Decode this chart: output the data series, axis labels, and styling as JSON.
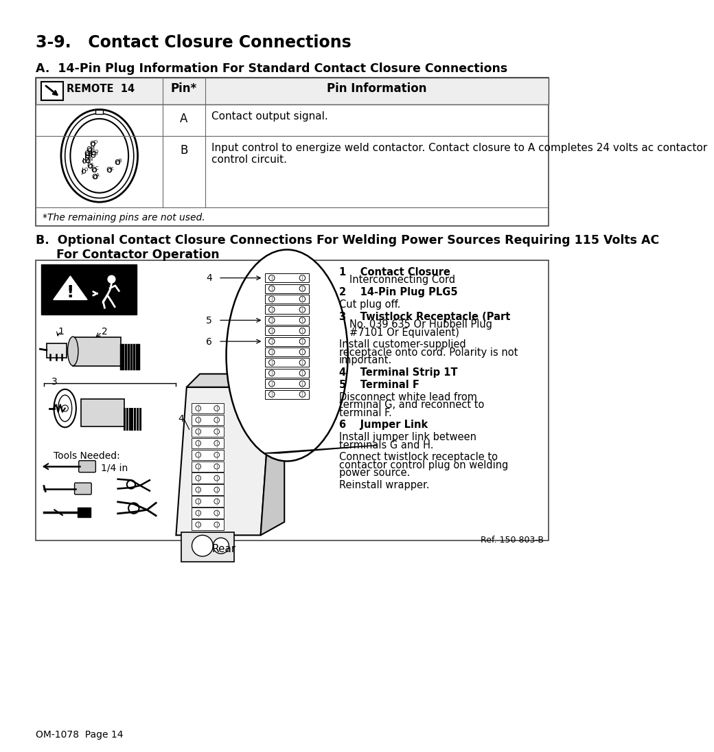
{
  "title": "3-9.   Contact Closure Connections",
  "section_a_title": "A.  14-Pin Plug Information For Standard Contact Closure Connections",
  "table_header_col2": "Pin*",
  "table_header_col3": "Pin Information",
  "row_a_pin": "A",
  "row_a_info": "Contact output signal.",
  "row_b_pin": "B",
  "row_b_info": "Input control to energize weld contactor. Contact closure to A completes 24 volts ac contactor\ncontrol circuit.",
  "footer_note": "*The remaining pins are not used.",
  "section_b_line1": "B.  Optional Contact Closure Connections For Welding Power Sources Requiring 115 Volts AC",
  "section_b_line2": "     For Contactor Operation",
  "notes": [
    [
      "1",
      "Contact Closure\nInterconnecting Cord"
    ],
    [
      "2",
      "14-Pin Plug PLG5"
    ],
    [
      "",
      "Cut plug off."
    ],
    [
      "3",
      "Twistlock Receptacle (Part\nNo. 039 635 Or Hubbell Plug\n#7101 Or Equivalent)"
    ],
    [
      "",
      "Install customer-supplied\nreceptacle onto cord. Polarity is not\nimportant."
    ],
    [
      "4",
      "Terminal Strip 1T"
    ],
    [
      "5",
      "Terminal F"
    ],
    [
      "",
      "Disconnect white lead from\nterminal G, and reconnect to\nterminal F."
    ],
    [
      "6",
      "Jumper Link"
    ],
    [
      "",
      "Install jumper link between\nterminals G and H."
    ],
    [
      "",
      "Connect twistlock receptacle to\ncontactor control plug on welding\npower source."
    ],
    [
      "",
      "Reinstall wrapper."
    ]
  ],
  "rear_label": "Rear",
  "tools_label": "Tools Needed:",
  "tool_size": "1/4 in",
  "ref_label": "Ref. 150 803-B",
  "page_label": "OM-1078  Page 14",
  "bg_color": "#ffffff"
}
